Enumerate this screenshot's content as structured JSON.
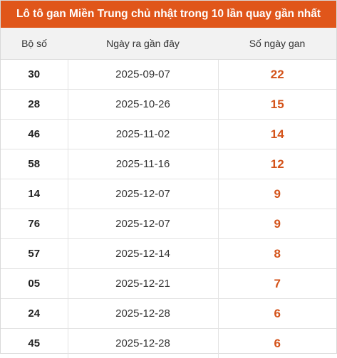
{
  "title": "Lô tô gan Miền Trung chủ nhật trong 10 lần quay gần nhất",
  "columns": {
    "number": "Bộ số",
    "last_date": "Ngày ra gần đây",
    "days": "Số ngày gan"
  },
  "rows": [
    {
      "number": "30",
      "last_date": "2025-09-07",
      "days": "22"
    },
    {
      "number": "28",
      "last_date": "2025-10-26",
      "days": "15"
    },
    {
      "number": "46",
      "last_date": "2025-11-02",
      "days": "14"
    },
    {
      "number": "58",
      "last_date": "2025-11-16",
      "days": "12"
    },
    {
      "number": "14",
      "last_date": "2025-12-07",
      "days": "9"
    },
    {
      "number": "76",
      "last_date": "2025-12-07",
      "days": "9"
    },
    {
      "number": "57",
      "last_date": "2025-12-14",
      "days": "8"
    },
    {
      "number": "05",
      "last_date": "2025-12-21",
      "days": "7"
    },
    {
      "number": "24",
      "last_date": "2025-12-28",
      "days": "6"
    },
    {
      "number": "45",
      "last_date": "2025-12-28",
      "days": "6"
    }
  ],
  "colors": {
    "header_bg": "#e0561a",
    "accent_value": "#d4531a",
    "column_header_bg": "#f2f2f2"
  }
}
